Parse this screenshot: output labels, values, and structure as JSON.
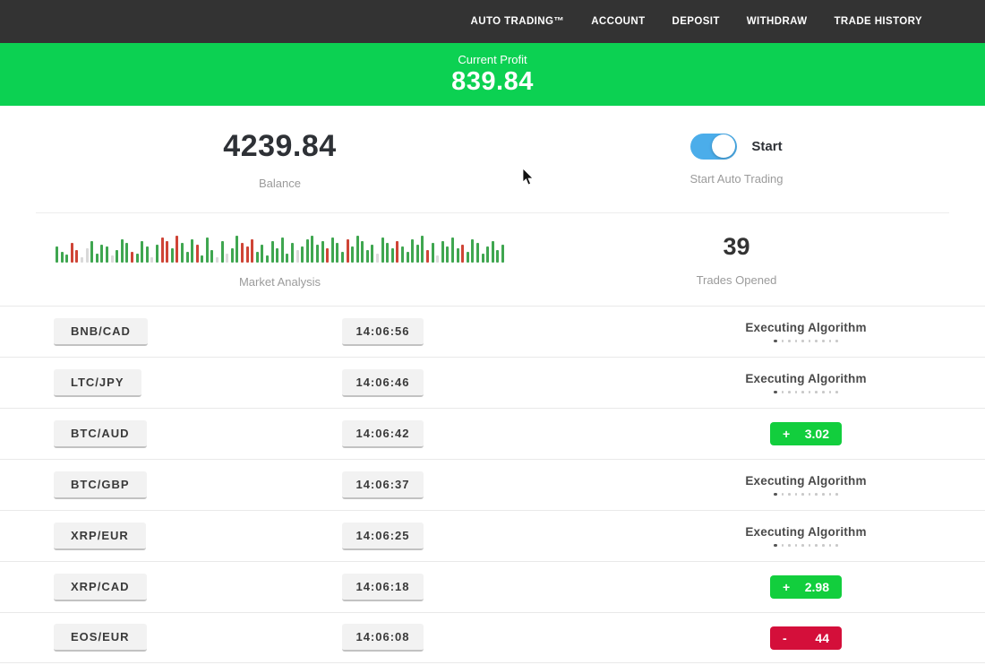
{
  "nav": {
    "items": [
      {
        "label": "AUTO TRADING™"
      },
      {
        "label": "ACCOUNT"
      },
      {
        "label": "DEPOSIT"
      },
      {
        "label": "WITHDRAW"
      },
      {
        "label": "TRADE HISTORY"
      }
    ]
  },
  "banner": {
    "label": "Current Profit",
    "value": "839.84"
  },
  "stats": {
    "balance_value": "4239.84",
    "balance_label": "Balance",
    "toggle_label": "Start",
    "toggle_sub_label": "Start Auto Trading",
    "auto_trading_on": true,
    "market_label": "Market Analysis",
    "trades_opened_value": "39",
    "trades_opened_label": "Trades Opened"
  },
  "market_bars": [
    "18g",
    "12g",
    "9g",
    "22r",
    "14r",
    "6l",
    "16l",
    "24g",
    "10g",
    "20g",
    "18g",
    "8l",
    "14g",
    "26g",
    "22g",
    "12r",
    "10g",
    "24g",
    "18g",
    "6l",
    "20g",
    "28r",
    "24r",
    "16g",
    "30r",
    "22g",
    "12g",
    "26g",
    "20r",
    "8g",
    "28g",
    "14g",
    "6l",
    "24g",
    "10l",
    "16g",
    "30g",
    "22r",
    "18r",
    "26r",
    "12g",
    "20g",
    "8g",
    "24g",
    "16g",
    "28g",
    "10g",
    "22g",
    "14l",
    "18g",
    "26g",
    "30g",
    "20g",
    "24g",
    "16r",
    "28g",
    "22g",
    "12g",
    "26r",
    "18g",
    "30g",
    "24g",
    "14g",
    "20g",
    "10l",
    "28g",
    "22g",
    "16g",
    "24r",
    "18g",
    "12g",
    "26g",
    "20g",
    "30g",
    "14r",
    "22g",
    "8l",
    "24g",
    "18g",
    "28g",
    "16g",
    "20r",
    "12g",
    "26g",
    "22g",
    "10g",
    "18g",
    "24g",
    "14g",
    "20g"
  ],
  "trades": {
    "executing_label": "Executing Algorithm",
    "executing_dots": 10,
    "rows": [
      {
        "pair": "BNB/CAD",
        "time": "14:06:56",
        "status": "executing"
      },
      {
        "pair": "LTC/JPY",
        "time": "14:06:46",
        "status": "executing"
      },
      {
        "pair": "BTC/AUD",
        "time": "14:06:42",
        "status": "profit",
        "sign": "+",
        "amount": "3.02"
      },
      {
        "pair": "BTC/GBP",
        "time": "14:06:37",
        "status": "executing"
      },
      {
        "pair": "XRP/EUR",
        "time": "14:06:25",
        "status": "executing"
      },
      {
        "pair": "XRP/CAD",
        "time": "14:06:18",
        "status": "profit",
        "sign": "+",
        "amount": "2.98"
      },
      {
        "pair": "EOS/EUR",
        "time": "14:06:08",
        "status": "loss",
        "sign": "-",
        "amount": "44"
      }
    ]
  },
  "colors": {
    "nav_bg": "#333333",
    "accent_green": "#0cd152",
    "badge_green": "#12ce3d",
    "badge_red": "#d40f3a",
    "toggle_blue": "#4badea"
  }
}
